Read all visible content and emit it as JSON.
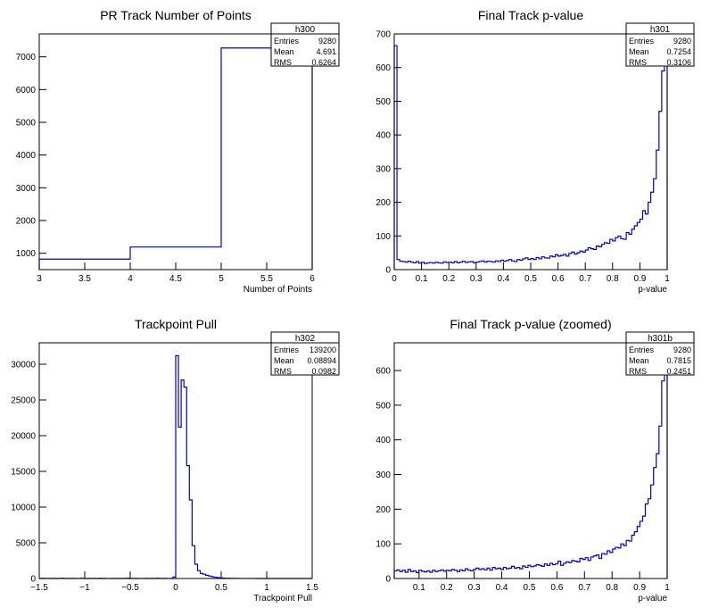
{
  "colors": {
    "histogram_line": "#0000cc",
    "axis": "#000000",
    "background": "#ffffff"
  },
  "chart_data": [
    {
      "type": "histogram",
      "title": "PR Track Number of Points",
      "xlabel": "Number of Points",
      "ylabel": "",
      "xlim": [
        3,
        6
      ],
      "ylim": [
        500,
        7700
      ],
      "x_ticks": [
        3,
        3.5,
        4,
        4.5,
        5,
        5.5,
        6
      ],
      "y_ticks": [
        1000,
        2000,
        3000,
        4000,
        5000,
        6000,
        7000
      ],
      "bin_edges": [
        3,
        4,
        5,
        6
      ],
      "values": [
        820,
        1190,
        7270
      ],
      "stats": {
        "name": "h300",
        "rows": [
          [
            "Entries",
            "9280"
          ],
          [
            "Mean",
            "4.691"
          ],
          [
            "RMS",
            "0.6264"
          ]
        ]
      }
    },
    {
      "type": "histogram",
      "title": "Final Track p-value",
      "xlabel": "p-value",
      "ylabel": "",
      "xlim": [
        0,
        1
      ],
      "ylim": [
        0,
        700
      ],
      "x_ticks": [
        0,
        0.1,
        0.2,
        0.3,
        0.4,
        0.5,
        0.6,
        0.7,
        0.8,
        0.9,
        1
      ],
      "y_ticks": [
        0,
        100,
        200,
        300,
        400,
        500,
        600,
        700
      ],
      "bin_edges_range": [
        0,
        1
      ],
      "values": [
        665,
        30,
        25,
        24,
        22,
        25,
        22,
        20,
        24,
        19,
        22,
        18,
        20,
        21,
        19,
        22,
        20,
        19,
        23,
        21,
        22,
        20,
        24,
        20,
        22,
        25,
        21,
        23,
        24,
        20,
        22,
        24,
        26,
        22,
        25,
        24,
        22,
        26,
        24,
        28,
        25,
        27,
        30,
        26,
        24,
        30,
        28,
        32,
        35,
        30,
        33,
        30,
        36,
        32,
        38,
        35,
        34,
        40,
        38,
        44,
        40,
        42,
        45,
        40,
        48,
        52,
        46,
        50,
        55,
        52,
        58,
        65,
        62,
        60,
        70,
        68,
        75,
        80,
        78,
        90,
        85,
        95,
        100,
        92,
        90,
        110,
        105,
        120,
        130,
        140,
        150,
        175,
        165,
        200,
        230,
        270,
        355,
        470,
        590,
        620
      ],
      "stats": {
        "name": "h301",
        "rows": [
          [
            "Entries",
            "9280"
          ],
          [
            "Mean",
            "0.7254"
          ],
          [
            "RMS",
            "0.3106"
          ]
        ]
      }
    },
    {
      "type": "histogram",
      "title": "Trackpoint Pull",
      "xlabel": "Trackpoint Pull",
      "ylabel": "",
      "xlim": [
        -1.5,
        1.5
      ],
      "ylim": [
        0,
        33000
      ],
      "x_ticks": [
        -1.5,
        -1,
        -0.5,
        0,
        0.5,
        1,
        1.5
      ],
      "y_ticks": [
        0,
        5000,
        10000,
        15000,
        20000,
        25000,
        30000
      ],
      "bin_edges_range": [
        -1.5,
        1.5
      ],
      "values": [
        0,
        30,
        20,
        25,
        0,
        20,
        0,
        15,
        30,
        0,
        20,
        0,
        25,
        0,
        10,
        30,
        20,
        0,
        15,
        0,
        25,
        0,
        30,
        0,
        20,
        10,
        0,
        25,
        0,
        15,
        0,
        20,
        30,
        0,
        15,
        0,
        25,
        10,
        0,
        20,
        0,
        15,
        0,
        30,
        20,
        0,
        25,
        10,
        0,
        200,
        31200,
        21200,
        27800,
        26800,
        15800,
        11000,
        4600,
        2000,
        1100,
        700,
        600,
        450,
        350,
        250,
        180,
        130,
        90,
        60,
        40,
        30,
        25,
        20,
        15,
        10,
        10,
        8,
        6,
        5,
        5,
        4,
        3,
        3,
        2,
        2,
        2,
        1,
        1,
        1,
        1,
        1,
        0,
        0,
        0,
        0,
        0,
        0,
        0,
        0,
        0,
        0
      ],
      "stats": {
        "name": "h302",
        "rows": [
          [
            "Entries",
            "139200"
          ],
          [
            "Mean",
            "0.08894"
          ],
          [
            "RMS",
            "0.0982"
          ]
        ]
      }
    },
    {
      "type": "histogram",
      "title": "Final Track p-value (zoomed)",
      "xlabel": "p-value",
      "ylabel": "",
      "xlim": [
        0.01,
        1
      ],
      "ylim": [
        0,
        680
      ],
      "x_ticks": [
        0.1,
        0.2,
        0.3,
        0.4,
        0.5,
        0.6,
        0.7,
        0.8,
        0.9,
        1
      ],
      "x_tick_labels": [
        "0.1",
        "0.2",
        "0.3",
        "0.4",
        "0.5",
        "0.6",
        "0.7",
        "0.8",
        "0.9",
        "1"
      ],
      "y_ticks": [
        0,
        100,
        200,
        300,
        400,
        500,
        600
      ],
      "bin_edges_range": [
        0.01,
        1
      ],
      "values": [
        22,
        25,
        20,
        24,
        18,
        26,
        20,
        22,
        17,
        24,
        21,
        19,
        22,
        18,
        24,
        20,
        22,
        25,
        21,
        24,
        22,
        26,
        24,
        20,
        25,
        22,
        28,
        24,
        22,
        26,
        30,
        26,
        28,
        25,
        30,
        24,
        32,
        28,
        30,
        26,
        32,
        28,
        30,
        35,
        30,
        32,
        28,
        36,
        32,
        38,
        34,
        36,
        40,
        38,
        35,
        42,
        38,
        44,
        40,
        42,
        50,
        38,
        44,
        48,
        46,
        52,
        50,
        48,
        58,
        55,
        60,
        52,
        62,
        65,
        68,
        58,
        72,
        70,
        80,
        75,
        85,
        90,
        88,
        100,
        95,
        110,
        108,
        125,
        135,
        150,
        165,
        180,
        215,
        230,
        270,
        320,
        360,
        440,
        570,
        610
      ],
      "stats": {
        "name": "h301b",
        "rows": [
          [
            "Entries",
            "9280"
          ],
          [
            "Mean",
            "0.7815"
          ],
          [
            "RMS",
            "0.2451"
          ]
        ]
      }
    }
  ]
}
